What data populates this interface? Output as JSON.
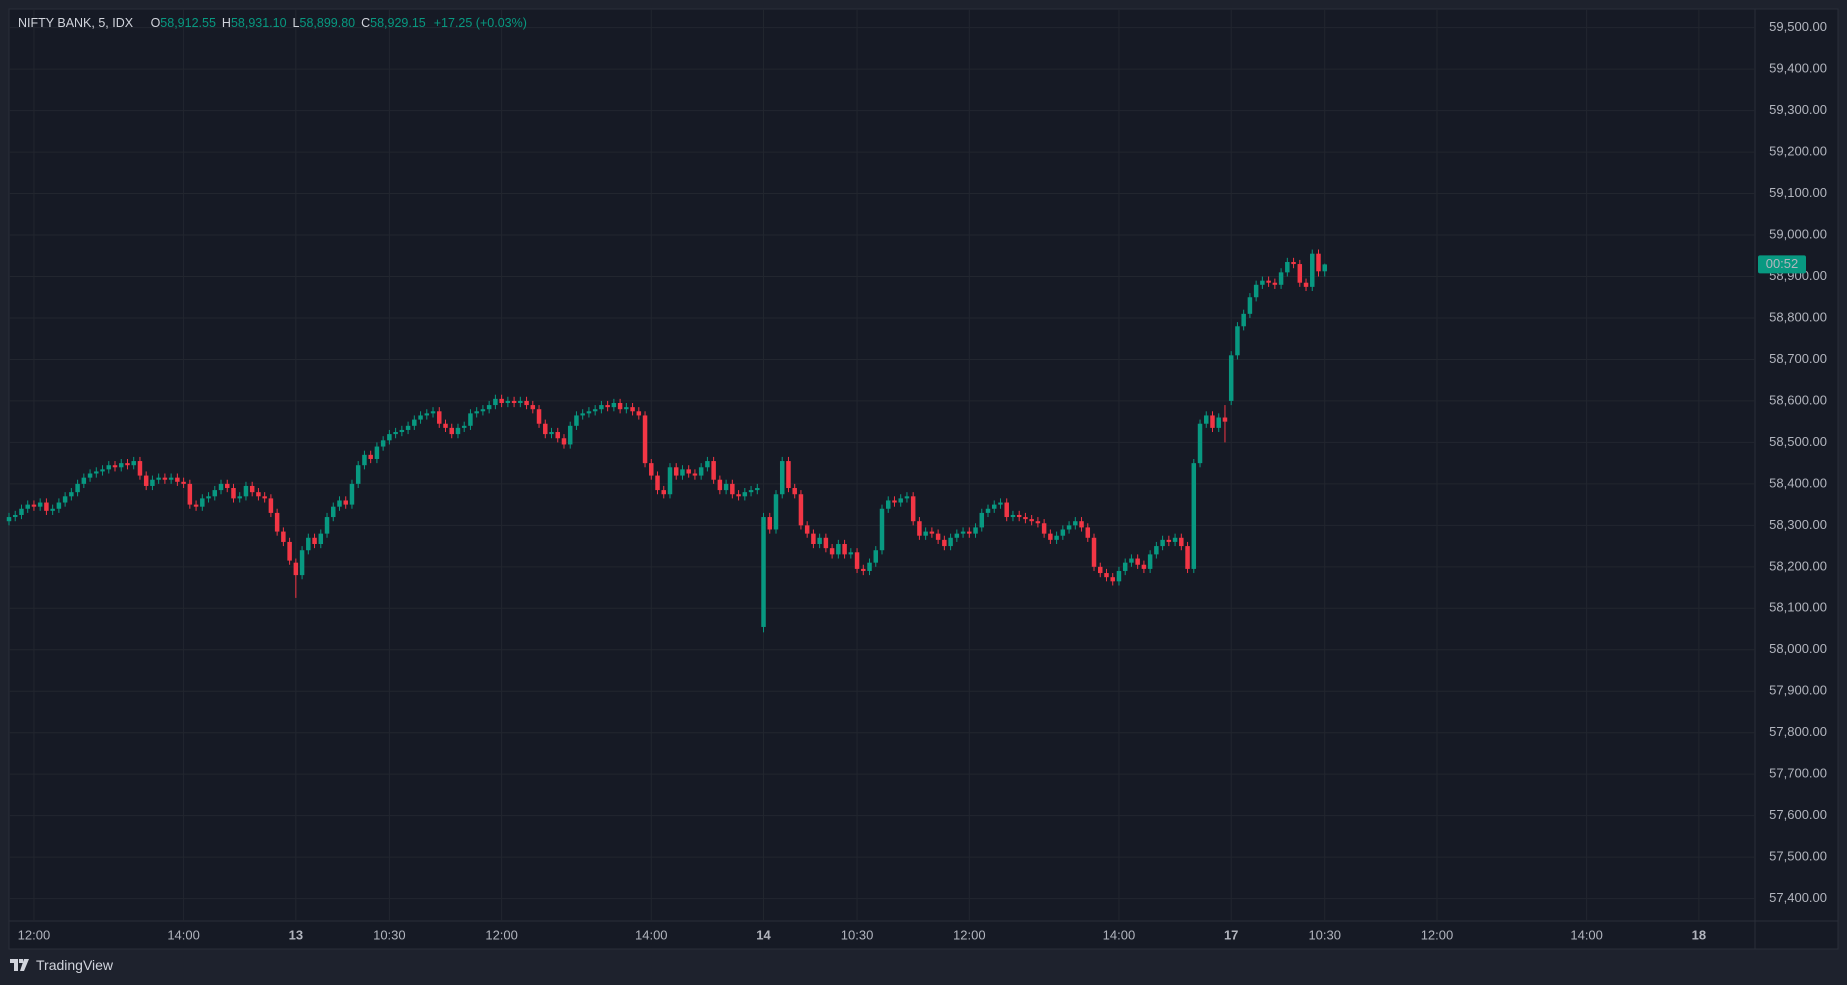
{
  "chart_data": {
    "type": "candlestick",
    "title": "NIFTY BANK, 5, IDX",
    "ohlc_legend": [
      {
        "name": "O",
        "value": {
          "value": 58912.55,
          "label": "58,912.55"
        }
      },
      {
        "name": "H",
        "value": {
          "value": 58931.1,
          "label": "58,931.10"
        }
      },
      {
        "name": "L",
        "value": {
          "value": 58899.8,
          "label": "58,899.80"
        }
      },
      {
        "name": "C",
        "value": {
          "value": 58929.15,
          "label": "58,929.15"
        }
      }
    ],
    "change": "+17.25 (+0.03%)",
    "last_price_label": "00:52",
    "brand": "TradingView",
    "up_color": "#089981",
    "down_color": "#f23645",
    "grid": true,
    "open": [
      58310,
      58320,
      58325,
      58340,
      58350,
      58345,
      58355,
      58335,
      58340,
      58355,
      58370,
      58380,
      58400,
      58415,
      58425,
      58430,
      58435,
      58445,
      58440,
      58450,
      58445,
      58455,
      58420,
      58395,
      58410,
      58415,
      58410,
      58415,
      58405,
      58400,
      58350,
      58345,
      58365,
      58370,
      58385,
      58400,
      58390,
      58365,
      58370,
      58395,
      58380,
      58370,
      58365,
      58330,
      58285,
      58260,
      58210,
      58180,
      58240,
      58270,
      58255,
      58280,
      58320,
      58345,
      58360,
      58350,
      58400,
      58445,
      58470,
      58460,
      58490,
      58505,
      58520,
      58525,
      58530,
      58540,
      58555,
      58565,
      58570,
      58575,
      58545,
      58535,
      58520,
      58535,
      58540,
      58570,
      58575,
      58580,
      58590,
      58605,
      58595,
      58600,
      58595,
      58600,
      58590,
      58580,
      58545,
      58520,
      58525,
      58510,
      58495,
      58540,
      58565,
      58570,
      58575,
      58580,
      58590,
      58585,
      58595,
      58580,
      58585,
      58575,
      58565,
      58450,
      58420,
      58385,
      58375,
      58440,
      58420,
      58435,
      58425,
      58420,
      58440,
      58455,
      58410,
      58385,
      58400,
      58375,
      58370,
      58380,
      58385,
      58055,
      58320,
      58290,
      58375,
      58455,
      58390,
      58375,
      58300,
      58280,
      58255,
      58270,
      58245,
      58230,
      58255,
      58230,
      58235,
      58195,
      58190,
      58210,
      58240,
      58340,
      58360,
      58355,
      58365,
      58370,
      58310,
      58275,
      58285,
      58280,
      58265,
      58250,
      58270,
      58280,
      58285,
      58280,
      58295,
      58330,
      58340,
      58350,
      58355,
      58320,
      58325,
      58320,
      58315,
      58310,
      58305,
      58280,
      58265,
      58275,
      58290,
      58300,
      58310,
      58295,
      58270,
      58200,
      58185,
      58175,
      58165,
      58190,
      58210,
      58220,
      58205,
      58195,
      58230,
      58250,
      58265,
      58260,
      58270,
      58250,
      58195,
      58450,
      58545,
      58565,
      58535,
      58560,
      58600,
      58710,
      58780,
      58810,
      58850,
      58880,
      58890,
      58885,
      58880,
      58910,
      58935,
      58930,
      58885,
      58875,
      58955,
      58912.55
    ],
    "high": [
      58330,
      58335,
      58350,
      58360,
      58360,
      58365,
      58365,
      58350,
      58365,
      58380,
      58390,
      58410,
      58425,
      58435,
      58440,
      58445,
      58455,
      58455,
      58460,
      58460,
      58465,
      58465,
      58430,
      58420,
      58425,
      58425,
      58425,
      58425,
      58415,
      58410,
      58360,
      58375,
      58380,
      58395,
      58410,
      58410,
      58400,
      58380,
      58405,
      58405,
      58390,
      58380,
      58375,
      58340,
      58295,
      58270,
      58220,
      58250,
      58280,
      58280,
      58290,
      58330,
      58355,
      58370,
      58370,
      58410,
      58455,
      58480,
      58480,
      58500,
      58515,
      58530,
      58535,
      58540,
      58550,
      58565,
      58575,
      58580,
      58585,
      58585,
      58555,
      58545,
      58545,
      58550,
      58580,
      58585,
      58590,
      58600,
      58615,
      58615,
      58610,
      58610,
      58610,
      58610,
      58600,
      58590,
      58555,
      58535,
      58535,
      58520,
      58550,
      58575,
      58580,
      58585,
      58590,
      58600,
      58600,
      58605,
      58605,
      58595,
      58595,
      58585,
      58575,
      58460,
      58430,
      58395,
      58450,
      58450,
      58445,
      58445,
      58435,
      58450,
      58465,
      58465,
      58420,
      58410,
      58410,
      58385,
      58390,
      58395,
      58400,
      58330,
      58330,
      58385,
      58465,
      58465,
      58400,
      58385,
      58310,
      58290,
      58280,
      58280,
      58255,
      58265,
      58265,
      58245,
      58245,
      58205,
      58220,
      58250,
      58350,
      58370,
      58370,
      58375,
      58380,
      58380,
      58320,
      58295,
      58295,
      58290,
      58275,
      58280,
      58290,
      58295,
      58295,
      58305,
      58340,
      58350,
      58360,
      58365,
      58365,
      58335,
      58335,
      58330,
      58325,
      58320,
      58315,
      58290,
      58285,
      58300,
      58310,
      58320,
      58320,
      58305,
      58280,
      58210,
      58195,
      58185,
      58200,
      58220,
      58230,
      58230,
      58215,
      58240,
      58260,
      58275,
      58275,
      58280,
      58280,
      58260,
      58460,
      58555,
      58575,
      58575,
      58570,
      58590,
      58720,
      58790,
      58820,
      58860,
      58890,
      58900,
      58900,
      58895,
      58920,
      58945,
      58945,
      58940,
      58895,
      58965,
      58965,
      58931.1
    ],
    "low": [
      58300,
      58310,
      58315,
      58330,
      58335,
      58335,
      58325,
      58325,
      58330,
      58345,
      58360,
      58370,
      58390,
      58405,
      58415,
      58420,
      58425,
      58430,
      58430,
      58435,
      58435,
      58410,
      58385,
      58385,
      58400,
      58400,
      58400,
      58395,
      58390,
      58340,
      58335,
      58335,
      58355,
      58360,
      58375,
      58380,
      58355,
      58355,
      58360,
      58370,
      58360,
      58355,
      58320,
      58275,
      58250,
      58205,
      58125,
      58170,
      58230,
      58245,
      58245,
      58270,
      58310,
      58335,
      58340,
      58340,
      58390,
      58435,
      58450,
      58450,
      58480,
      58495,
      58510,
      58515,
      58520,
      58530,
      58545,
      58555,
      58560,
      58535,
      58525,
      58510,
      58510,
      58525,
      58530,
      58560,
      58565,
      58570,
      58580,
      58585,
      58585,
      58585,
      58585,
      58580,
      58570,
      58535,
      58510,
      58510,
      58500,
      58485,
      58485,
      58530,
      58555,
      58560,
      58565,
      58570,
      58575,
      58575,
      58570,
      58570,
      58565,
      58555,
      58440,
      58410,
      58375,
      58365,
      58365,
      58410,
      58410,
      58415,
      58410,
      58410,
      58430,
      58400,
      58375,
      58375,
      58365,
      58360,
      58360,
      58370,
      58375,
      58042,
      58280,
      58280,
      58365,
      58380,
      58365,
      58290,
      58270,
      58245,
      58245,
      58235,
      58220,
      58220,
      58220,
      58220,
      58185,
      58180,
      58180,
      58200,
      58230,
      58330,
      58345,
      58345,
      58355,
      58300,
      58265,
      58265,
      58270,
      58255,
      58240,
      58240,
      58260,
      58270,
      58270,
      58270,
      58285,
      58320,
      58330,
      58340,
      58310,
      58310,
      58310,
      58305,
      58300,
      58295,
      58270,
      58255,
      58255,
      58265,
      58280,
      58290,
      58285,
      58260,
      58190,
      58175,
      58165,
      58155,
      58155,
      58180,
      58200,
      58195,
      58185,
      58185,
      58220,
      58240,
      58250,
      58250,
      58240,
      58185,
      58185,
      58440,
      58535,
      58525,
      58525,
      58500,
      58590,
      58700,
      58770,
      58800,
      58840,
      58870,
      58875,
      58870,
      58870,
      58900,
      58920,
      58875,
      58865,
      58865,
      58900,
      58899.8
    ],
    "close": [
      58320,
      58325,
      58340,
      58350,
      58345,
      58355,
      58335,
      58340,
      58355,
      58370,
      58380,
      58400,
      58415,
      58425,
      58430,
      58435,
      58445,
      58440,
      58450,
      58445,
      58455,
      58420,
      58395,
      58410,
      58415,
      58410,
      58415,
      58405,
      58400,
      58350,
      58345,
      58365,
      58370,
      58385,
      58400,
      58390,
      58365,
      58370,
      58395,
      58380,
      58370,
      58365,
      58330,
      58285,
      58260,
      58215,
      58180,
      58240,
      58270,
      58255,
      58280,
      58320,
      58345,
      58360,
      58350,
      58400,
      58445,
      58470,
      58460,
      58490,
      58505,
      58520,
      58525,
      58530,
      58540,
      58555,
      58565,
      58570,
      58575,
      58545,
      58535,
      58520,
      58535,
      58540,
      58570,
      58575,
      58580,
      58590,
      58605,
      58595,
      58600,
      58595,
      58600,
      58590,
      58580,
      58545,
      58520,
      58525,
      58510,
      58495,
      58540,
      58565,
      58570,
      58575,
      58580,
      58590,
      58585,
      58595,
      58580,
      58585,
      58575,
      58565,
      58450,
      58420,
      58385,
      58375,
      58440,
      58420,
      58435,
      58425,
      58420,
      58440,
      58455,
      58410,
      58385,
      58400,
      58375,
      58370,
      58380,
      58385,
      58390,
      58320,
      58290,
      58375,
      58455,
      58390,
      58375,
      58300,
      58280,
      58255,
      58270,
      58245,
      58230,
      58255,
      58230,
      58235,
      58195,
      58190,
      58210,
      58240,
      58340,
      58360,
      58355,
      58365,
      58370,
      58310,
      58275,
      58285,
      58280,
      58265,
      58250,
      58270,
      58280,
      58285,
      58280,
      58295,
      58330,
      58340,
      58350,
      58355,
      58320,
      58325,
      58320,
      58315,
      58310,
      58305,
      58280,
      58265,
      58275,
      58290,
      58300,
      58310,
      58295,
      58270,
      58200,
      58185,
      58175,
      58165,
      58190,
      58210,
      58220,
      58205,
      58195,
      58230,
      58250,
      58265,
      58260,
      58270,
      58250,
      58195,
      58450,
      58545,
      58565,
      58535,
      58560,
      58550,
      58710,
      58780,
      58810,
      58850,
      58880,
      58890,
      58885,
      58880,
      58910,
      58935,
      58930,
      58885,
      58875,
      58955,
      58912.55,
      58929.15
    ],
    "xlim": [
      0,
      280
    ],
    "xticks": [
      {
        "value": 4,
        "label": "12:00"
      },
      {
        "value": 28,
        "label": "14:00"
      },
      {
        "value": 46,
        "label": "13"
      },
      {
        "value": 61,
        "label": "10:30"
      },
      {
        "value": 79,
        "label": "12:00"
      },
      {
        "value": 103,
        "label": "14:00"
      },
      {
        "value": 121,
        "label": "14"
      },
      {
        "value": 136,
        "label": "10:30"
      },
      {
        "value": 154,
        "label": "12:00"
      },
      {
        "value": 178,
        "label": "14:00"
      },
      {
        "value": 196,
        "label": "17"
      },
      {
        "value": 211,
        "label": "10:30"
      },
      {
        "value": 229,
        "label": "12:00"
      },
      {
        "value": 253,
        "label": "14:00"
      },
      {
        "value": 271,
        "label": "18"
      }
    ],
    "ylim": [
      57346,
      59545
    ],
    "yticks": [
      {
        "value": 57400,
        "label": "57,400.00"
      },
      {
        "value": 57500,
        "label": "57,500.00"
      },
      {
        "value": 57600,
        "label": "57,600.00"
      },
      {
        "value": 57700,
        "label": "57,700.00"
      },
      {
        "value": 57800,
        "label": "57,800.00"
      },
      {
        "value": 57900,
        "label": "57,900.00"
      },
      {
        "value": 58000,
        "label": "58,000.00"
      },
      {
        "value": 58100,
        "label": "58,100.00"
      },
      {
        "value": 58200,
        "label": "58,200.00"
      },
      {
        "value": 58300,
        "label": "58,300.00"
      },
      {
        "value": 58400,
        "label": "58,400.00"
      },
      {
        "value": 58500,
        "label": "58,500.00"
      },
      {
        "value": 58600,
        "label": "58,600.00"
      },
      {
        "value": 58700,
        "label": "58,700.00"
      },
      {
        "value": 58800,
        "label": "58,800.00"
      },
      {
        "value": 58900,
        "label": "58,900.00"
      },
      {
        "value": 59000,
        "label": "59,000.00"
      },
      {
        "value": 59100,
        "label": "59,100.00"
      },
      {
        "value": 59200,
        "label": "59,200.00"
      },
      {
        "value": 59300,
        "label": "59,300.00"
      },
      {
        "value": 59400,
        "label": "59,400.00"
      },
      {
        "value": 59500,
        "label": "59,500.00"
      }
    ]
  }
}
